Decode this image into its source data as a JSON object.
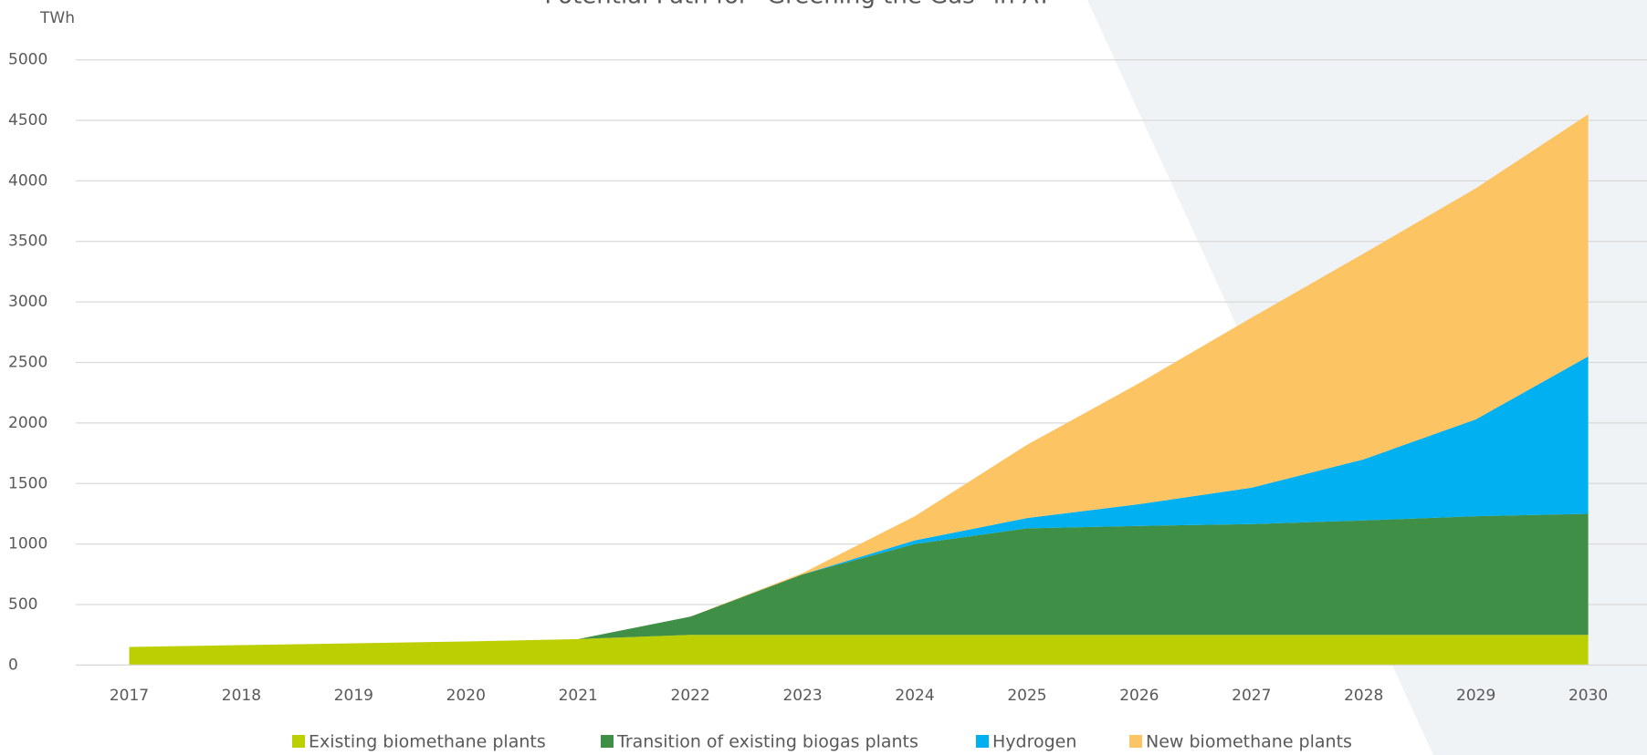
{
  "chart_data": {
    "type": "area",
    "stacked": true,
    "title": "Potential Path for \"Greening the Gas\" in AT",
    "y_label": "TWh",
    "categories": [
      "2017",
      "2018",
      "2019",
      "2020",
      "2021",
      "2022",
      "2023",
      "2024",
      "2025",
      "2026",
      "2027",
      "2028",
      "2029",
      "2030"
    ],
    "series": [
      {
        "name": "Existing biomethane plants",
        "color": "#bccf02",
        "values": [
          150,
          165,
          180,
          195,
          215,
          250,
          250,
          250,
          250,
          250,
          250,
          250,
          250,
          250
        ]
      },
      {
        "name": "Transition of existing biogas plants",
        "color": "#3f8f46",
        "values": [
          0,
          0,
          0,
          0,
          0,
          150,
          500,
          750,
          880,
          900,
          915,
          945,
          980,
          1000
        ]
      },
      {
        "name": "Hydrogen",
        "color": "#00b0f0",
        "values": [
          0,
          0,
          0,
          0,
          0,
          0,
          0,
          30,
          85,
          180,
          300,
          505,
          800,
          1300
        ]
      },
      {
        "name": "New biomethane plants",
        "color": "#fdc463",
        "values": [
          0,
          0,
          0,
          0,
          0,
          0,
          10,
          200,
          605,
          1000,
          1405,
          1700,
          1910,
          2000
        ]
      }
    ],
    "ylim": [
      0,
      5000
    ],
    "yticks": [
      0,
      500,
      1000,
      1500,
      2000,
      2500,
      3000,
      3500,
      4000,
      4500,
      5000
    ],
    "grid": true,
    "legend": "bottom"
  }
}
